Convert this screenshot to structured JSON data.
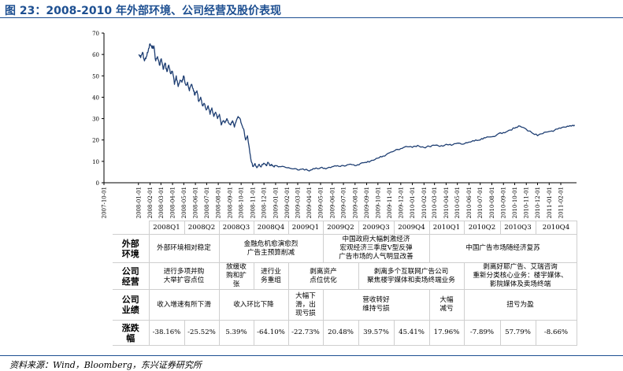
{
  "figure_title": "图 23：2008-2010 年外部环境、公司经营及股价表现",
  "source": "资料来源：Wind，Bloomberg，东兴证券研究所",
  "chart_data": {
    "type": "line",
    "title": "",
    "xlabel": "",
    "ylabel": "",
    "ylim": [
      0,
      70
    ],
    "yticks": [
      0,
      10,
      20,
      30,
      40,
      50,
      60,
      70
    ],
    "xlim": [
      "2007-10-01",
      "2011-03-15"
    ],
    "xticks": [
      "2007-10-01",
      "2008-01-01",
      "2008-02-01",
      "2008-03-01",
      "2008-04-01",
      "2008-05-01",
      "2008-06-01",
      "2008-07-01",
      "2008-08-01",
      "2008-09-01",
      "2008-10-01",
      "2008-11-01",
      "2008-12-01",
      "2009-01-01",
      "2009-02-01",
      "2009-03-01",
      "2009-04-01",
      "2009-05-01",
      "2009-06-01",
      "2009-07-01",
      "2009-08-01",
      "2009-09-01",
      "2009-10-01",
      "2009-11-01",
      "2009-12-01",
      "2010-01-01",
      "2010-02-01",
      "2010-03-01",
      "2010-04-01",
      "2010-05-01",
      "2010-06-01",
      "2010-07-01",
      "2010-08-01",
      "2010-09-01",
      "2010-10-01",
      "2010-11-01",
      "2010-12-01",
      "2011-01-01",
      "2011-02-01"
    ],
    "grid": false,
    "legend": "none",
    "series": [
      {
        "color": "#1f3f73",
        "points": [
          [
            "2008-01-02",
            60
          ],
          [
            "2008-01-07",
            58.5
          ],
          [
            "2008-01-12",
            61
          ],
          [
            "2008-01-17",
            57
          ],
          [
            "2008-01-22",
            59
          ],
          [
            "2008-01-27",
            61.5
          ],
          [
            "2008-02-01",
            65
          ],
          [
            "2008-02-06",
            63
          ],
          [
            "2008-02-11",
            64
          ],
          [
            "2008-02-16",
            57
          ],
          [
            "2008-02-21",
            59
          ],
          [
            "2008-02-26",
            55
          ],
          [
            "2008-03-02",
            58
          ],
          [
            "2008-03-07",
            53
          ],
          [
            "2008-03-12",
            56
          ],
          [
            "2008-03-17",
            52
          ],
          [
            "2008-03-22",
            55
          ],
          [
            "2008-03-27",
            51
          ],
          [
            "2008-04-01",
            52
          ],
          [
            "2008-04-06",
            46
          ],
          [
            "2008-04-11",
            50
          ],
          [
            "2008-04-16",
            45
          ],
          [
            "2008-04-21",
            48
          ],
          [
            "2008-04-26",
            47
          ],
          [
            "2008-05-01",
            50
          ],
          [
            "2008-05-06",
            46
          ],
          [
            "2008-05-11",
            47
          ],
          [
            "2008-05-16",
            43
          ],
          [
            "2008-05-21",
            46
          ],
          [
            "2008-05-26",
            44
          ],
          [
            "2008-05-31",
            41
          ],
          [
            "2008-06-05",
            43
          ],
          [
            "2008-06-10",
            38
          ],
          [
            "2008-06-15",
            40
          ],
          [
            "2008-06-20",
            36
          ],
          [
            "2008-06-25",
            37
          ],
          [
            "2008-06-30",
            34
          ],
          [
            "2008-07-05",
            36
          ],
          [
            "2008-07-10",
            32
          ],
          [
            "2008-07-15",
            35
          ],
          [
            "2008-07-20",
            31
          ],
          [
            "2008-07-25",
            33
          ],
          [
            "2008-07-30",
            30
          ],
          [
            "2008-08-04",
            32
          ],
          [
            "2008-08-09",
            27
          ],
          [
            "2008-08-14",
            29
          ],
          [
            "2008-08-19",
            28
          ],
          [
            "2008-08-24",
            30
          ],
          [
            "2008-08-29",
            28
          ],
          [
            "2008-09-03",
            27
          ],
          [
            "2008-09-08",
            29
          ],
          [
            "2008-09-13",
            26
          ],
          [
            "2008-09-18",
            29
          ],
          [
            "2008-09-23",
            31
          ],
          [
            "2008-09-28",
            30
          ],
          [
            "2008-10-03",
            27
          ],
          [
            "2008-10-08",
            25
          ],
          [
            "2008-10-13",
            20
          ],
          [
            "2008-10-18",
            22
          ],
          [
            "2008-10-23",
            16
          ],
          [
            "2008-10-28",
            10
          ],
          [
            "2008-11-02",
            7.5
          ],
          [
            "2008-11-07",
            9
          ],
          [
            "2008-11-12",
            7
          ],
          [
            "2008-11-17",
            8.5
          ],
          [
            "2008-11-22",
            7.5
          ],
          [
            "2008-11-27",
            8.5
          ],
          [
            "2008-12-02",
            9
          ],
          [
            "2008-12-07",
            8
          ],
          [
            "2008-12-12",
            9.5
          ],
          [
            "2008-12-17",
            8
          ],
          [
            "2008-12-22",
            8.5
          ],
          [
            "2008-12-27",
            7.5
          ],
          [
            "2009-01-01",
            8
          ],
          [
            "2009-01-15",
            7.5
          ],
          [
            "2009-02-01",
            7
          ],
          [
            "2009-02-15",
            6.5
          ],
          [
            "2009-03-01",
            6
          ],
          [
            "2009-03-15",
            6.5
          ],
          [
            "2009-04-01",
            5.5
          ],
          [
            "2009-04-15",
            6.5
          ],
          [
            "2009-05-01",
            7
          ],
          [
            "2009-05-15",
            6.5
          ],
          [
            "2009-06-01",
            7.5
          ],
          [
            "2009-06-15",
            8
          ],
          [
            "2009-07-01",
            8
          ],
          [
            "2009-07-15",
            8.5
          ],
          [
            "2009-08-01",
            8
          ],
          [
            "2009-08-15",
            9
          ],
          [
            "2009-09-01",
            9.5
          ],
          [
            "2009-09-15",
            10.5
          ],
          [
            "2009-10-01",
            11.5
          ],
          [
            "2009-10-15",
            12.5
          ],
          [
            "2009-11-01",
            14
          ],
          [
            "2009-11-15",
            15
          ],
          [
            "2009-12-01",
            16
          ],
          [
            "2009-12-15",
            17
          ],
          [
            "2010-01-01",
            16.5
          ],
          [
            "2010-01-15",
            17.5
          ],
          [
            "2010-02-01",
            16.5
          ],
          [
            "2010-02-15",
            17
          ],
          [
            "2010-03-01",
            17.5
          ],
          [
            "2010-03-15",
            17
          ],
          [
            "2010-04-01",
            18
          ],
          [
            "2010-04-15",
            17.5
          ],
          [
            "2010-05-01",
            18.5
          ],
          [
            "2010-05-15",
            18
          ],
          [
            "2010-06-01",
            19
          ],
          [
            "2010-06-15",
            19.5
          ],
          [
            "2010-07-01",
            20
          ],
          [
            "2010-07-15",
            21
          ],
          [
            "2010-08-01",
            21.5
          ],
          [
            "2010-08-15",
            22.5
          ],
          [
            "2010-09-01",
            23.5
          ],
          [
            "2010-09-15",
            24.5
          ],
          [
            "2010-10-01",
            25.5
          ],
          [
            "2010-10-15",
            26.5
          ],
          [
            "2010-11-01",
            25
          ],
          [
            "2010-11-15",
            23.5
          ],
          [
            "2010-12-01",
            22
          ],
          [
            "2010-12-15",
            23
          ],
          [
            "2011-01-01",
            24
          ],
          [
            "2011-01-15",
            24.5
          ],
          [
            "2011-02-01",
            25.5
          ],
          [
            "2011-02-15",
            26
          ],
          [
            "2011-03-01",
            26.5
          ],
          [
            "2011-03-10",
            27
          ]
        ]
      }
    ]
  },
  "table": {
    "quarters": [
      "2008Q1",
      "2008Q2",
      "2008Q3",
      "2008Q4",
      "2009Q1",
      "2009Q2",
      "2009Q3",
      "2009Q4",
      "2010Q1",
      "2010Q2",
      "2010Q3",
      "2010Q4"
    ],
    "rows": [
      {
        "header": "外部环境",
        "cells": [
          {
            "span": 2,
            "text": "外部环境相对稳定"
          },
          {
            "span": 3,
            "text": "金融危机愈演愈烈\n广告主预算削减"
          },
          {
            "span": 3,
            "text": "中国政府大幅刺激经济\n宏观经济三季度V型反弹\n广告市场的人气明显改善"
          },
          {
            "span": 4,
            "text": "中国广告市场随经济复苏"
          }
        ]
      },
      {
        "header": "公司经营",
        "cells": [
          {
            "span": 2,
            "text": "进行多项并购\n大举扩容点位"
          },
          {
            "span": 1,
            "text": "放缓收\n购和扩\n张"
          },
          {
            "span": 1,
            "text": "进行业\n务重组"
          },
          {
            "span": 2,
            "text": "剥离资产\n点位优化"
          },
          {
            "span": 3,
            "text": "剥离多个互联网广告公司\n聚焦楼宇媒体和卖场终端业务"
          },
          {
            "span": 3,
            "text": "剥离好耶广告、艾瑞咨询\n重新分类核心业务：楼宇媒体、\n影院媒体及卖场终端"
          }
        ]
      },
      {
        "header": "公司业绩",
        "cells": [
          {
            "span": 2,
            "text": "收入增速有所下滑"
          },
          {
            "span": 2,
            "text": "收入环比下降"
          },
          {
            "span": 1,
            "text": "大幅下\n滑，出\n现亏损"
          },
          {
            "span": 3,
            "text": "营收转好\n维持亏损"
          },
          {
            "span": 1,
            "text": "大幅\n减亏"
          },
          {
            "span": 3,
            "text": "扭亏为盈"
          }
        ]
      },
      {
        "header": "涨跌幅",
        "cells": [
          {
            "span": 1,
            "text": "-38.16%"
          },
          {
            "span": 1,
            "text": "-25.52%"
          },
          {
            "span": 1,
            "text": "5.39%"
          },
          {
            "span": 1,
            "text": "-64.10%"
          },
          {
            "span": 1,
            "text": "-22.73%"
          },
          {
            "span": 1,
            "text": "20.48%"
          },
          {
            "span": 1,
            "text": "39.57%"
          },
          {
            "span": 1,
            "text": "45.41%"
          },
          {
            "span": 1,
            "text": "17.96%"
          },
          {
            "span": 1,
            "text": "-7.89%"
          },
          {
            "span": 1,
            "text": "57.79%"
          },
          {
            "span": 1,
            "text": "-8.66%"
          }
        ]
      }
    ]
  }
}
